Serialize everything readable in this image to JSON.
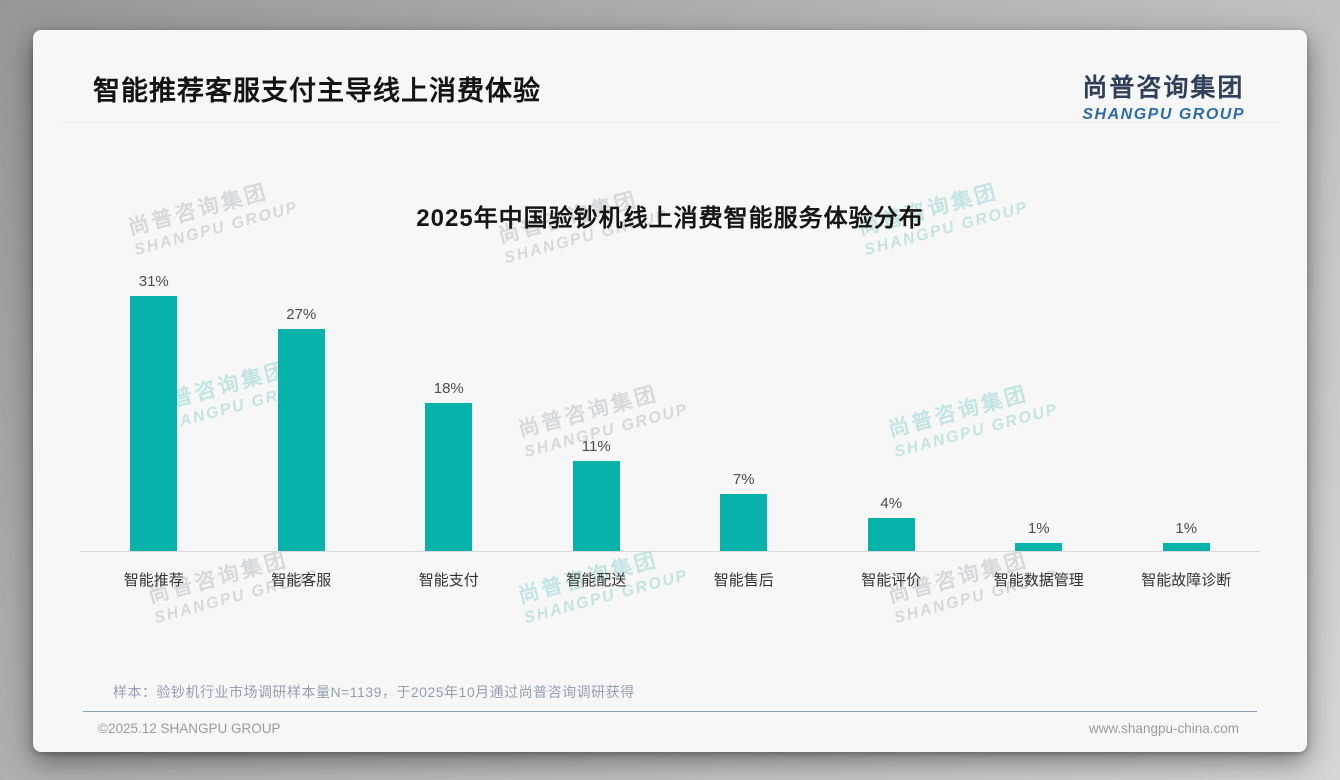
{
  "header": {
    "title": "智能推荐客服支付主导线上消费体验",
    "logo": {
      "cn": "尚普咨询集团",
      "en": "SHANGPU GROUP"
    }
  },
  "chart_data": {
    "type": "bar",
    "title": "2025年中国验钞机线上消费智能服务体验分布",
    "categories": [
      "智能推荐",
      "智能客服",
      "智能支付",
      "智能配送",
      "智能售后",
      "智能评价",
      "智能数据管理",
      "智能故障诊断"
    ],
    "values": [
      31,
      27,
      18,
      11,
      7,
      4,
      1,
      1
    ],
    "value_labels": [
      "31%",
      "27%",
      "18%",
      "11%",
      "7%",
      "4%",
      "1%",
      "1%"
    ],
    "unit": "%",
    "bar_color": "#06b2a9",
    "ylim": [
      0,
      33
    ],
    "grid": false,
    "legend": null,
    "xlabel": "",
    "ylabel": ""
  },
  "watermark": {
    "cn": "尚普咨询集团",
    "en": "SHANGPU GROUP"
  },
  "footnote": "样本：验钞机行业市场调研样本量N=1139，于2025年10月通过尚普咨询调研获得",
  "footer": {
    "left": "©2025.12 SHANGPU GROUP",
    "right": "www.shangpu-china.com"
  },
  "colors": {
    "bar": "#06b2a9",
    "logo_cn": "#30405a",
    "logo_en": "#2c6cae",
    "footnote": "#93a0b2",
    "footer_divider": "#8ba1b6"
  }
}
